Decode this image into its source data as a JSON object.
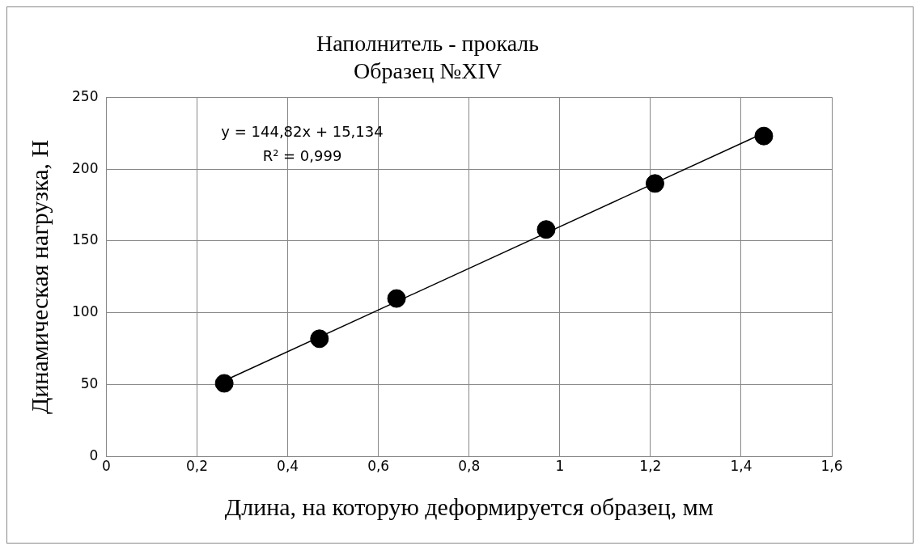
{
  "chart_data": {
    "type": "scatter",
    "title": "Наполнитель - прокаль",
    "subtitle": "Образец №XIV",
    "xlabel": "Длина, на которую деформируется образец, мм",
    "ylabel": "Динамическая нагрузка, Н",
    "series": [
      {
        "color": "#000000",
        "x": [
          0.26,
          0.47,
          0.64,
          0.97,
          1.21,
          1.45
        ],
        "values": [
          51,
          82,
          110,
          158,
          190,
          223
        ],
        "marker": "circle"
      },
      {
        "type": "line",
        "color": "#000000",
        "x": [
          0.26,
          1.45
        ],
        "values": [
          52.8,
          225.1
        ],
        "marker": "none"
      }
    ],
    "xlim": [
      0,
      1.6
    ],
    "xticks": [
      0,
      {
        "value": 0.2,
        "label": "0,2"
      },
      {
        "value": 0.4,
        "label": "0,4"
      },
      {
        "value": 0.6,
        "label": "0,6"
      },
      {
        "value": 0.8,
        "label": "0,8"
      },
      1,
      {
        "value": 1.2,
        "label": "1,2"
      },
      {
        "value": 1.4,
        "label": "1,4"
      },
      {
        "value": 1.6,
        "label": "1,6"
      }
    ],
    "ylim": [
      0,
      250
    ],
    "yticks": [
      0,
      50,
      100,
      150,
      200,
      250
    ],
    "grid": true,
    "legend": false,
    "annotations": [
      "y = 144,82x + 15,134",
      "R² = 0,999"
    ]
  }
}
